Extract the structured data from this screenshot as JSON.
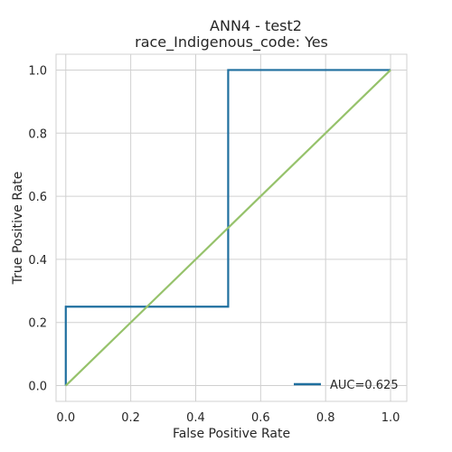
{
  "chart_data": {
    "type": "line",
    "title": "ANN4 - test2",
    "subtitle": "race_Indigenous_code: Yes",
    "xlabel": "False Positive Rate",
    "ylabel": "True Positive Rate",
    "xlim": [
      -0.03,
      1.05
    ],
    "ylim": [
      -0.05,
      1.05
    ],
    "xticks": [
      0.0,
      0.2,
      0.4,
      0.6,
      0.8,
      1.0
    ],
    "yticks": [
      0.0,
      0.2,
      0.4,
      0.6,
      0.8,
      1.0
    ],
    "xtick_labels": [
      "0.0",
      "0.2",
      "0.4",
      "0.6",
      "0.8",
      "1.0"
    ],
    "ytick_labels": [
      "0.0",
      "0.2",
      "0.4",
      "0.6",
      "0.8",
      "1.0"
    ],
    "grid": true,
    "legend_position": "lower-right",
    "series": [
      {
        "name": "AUC=0.625",
        "color": "#1f6f9f",
        "x": [
          0.0,
          0.0,
          0.5,
          0.5,
          1.0
        ],
        "y": [
          0.0,
          0.25,
          0.25,
          1.0,
          1.0
        ]
      },
      {
        "color": "#96c26b",
        "x": [
          0.0,
          1.0
        ],
        "y": [
          0.0,
          1.0
        ]
      }
    ]
  }
}
